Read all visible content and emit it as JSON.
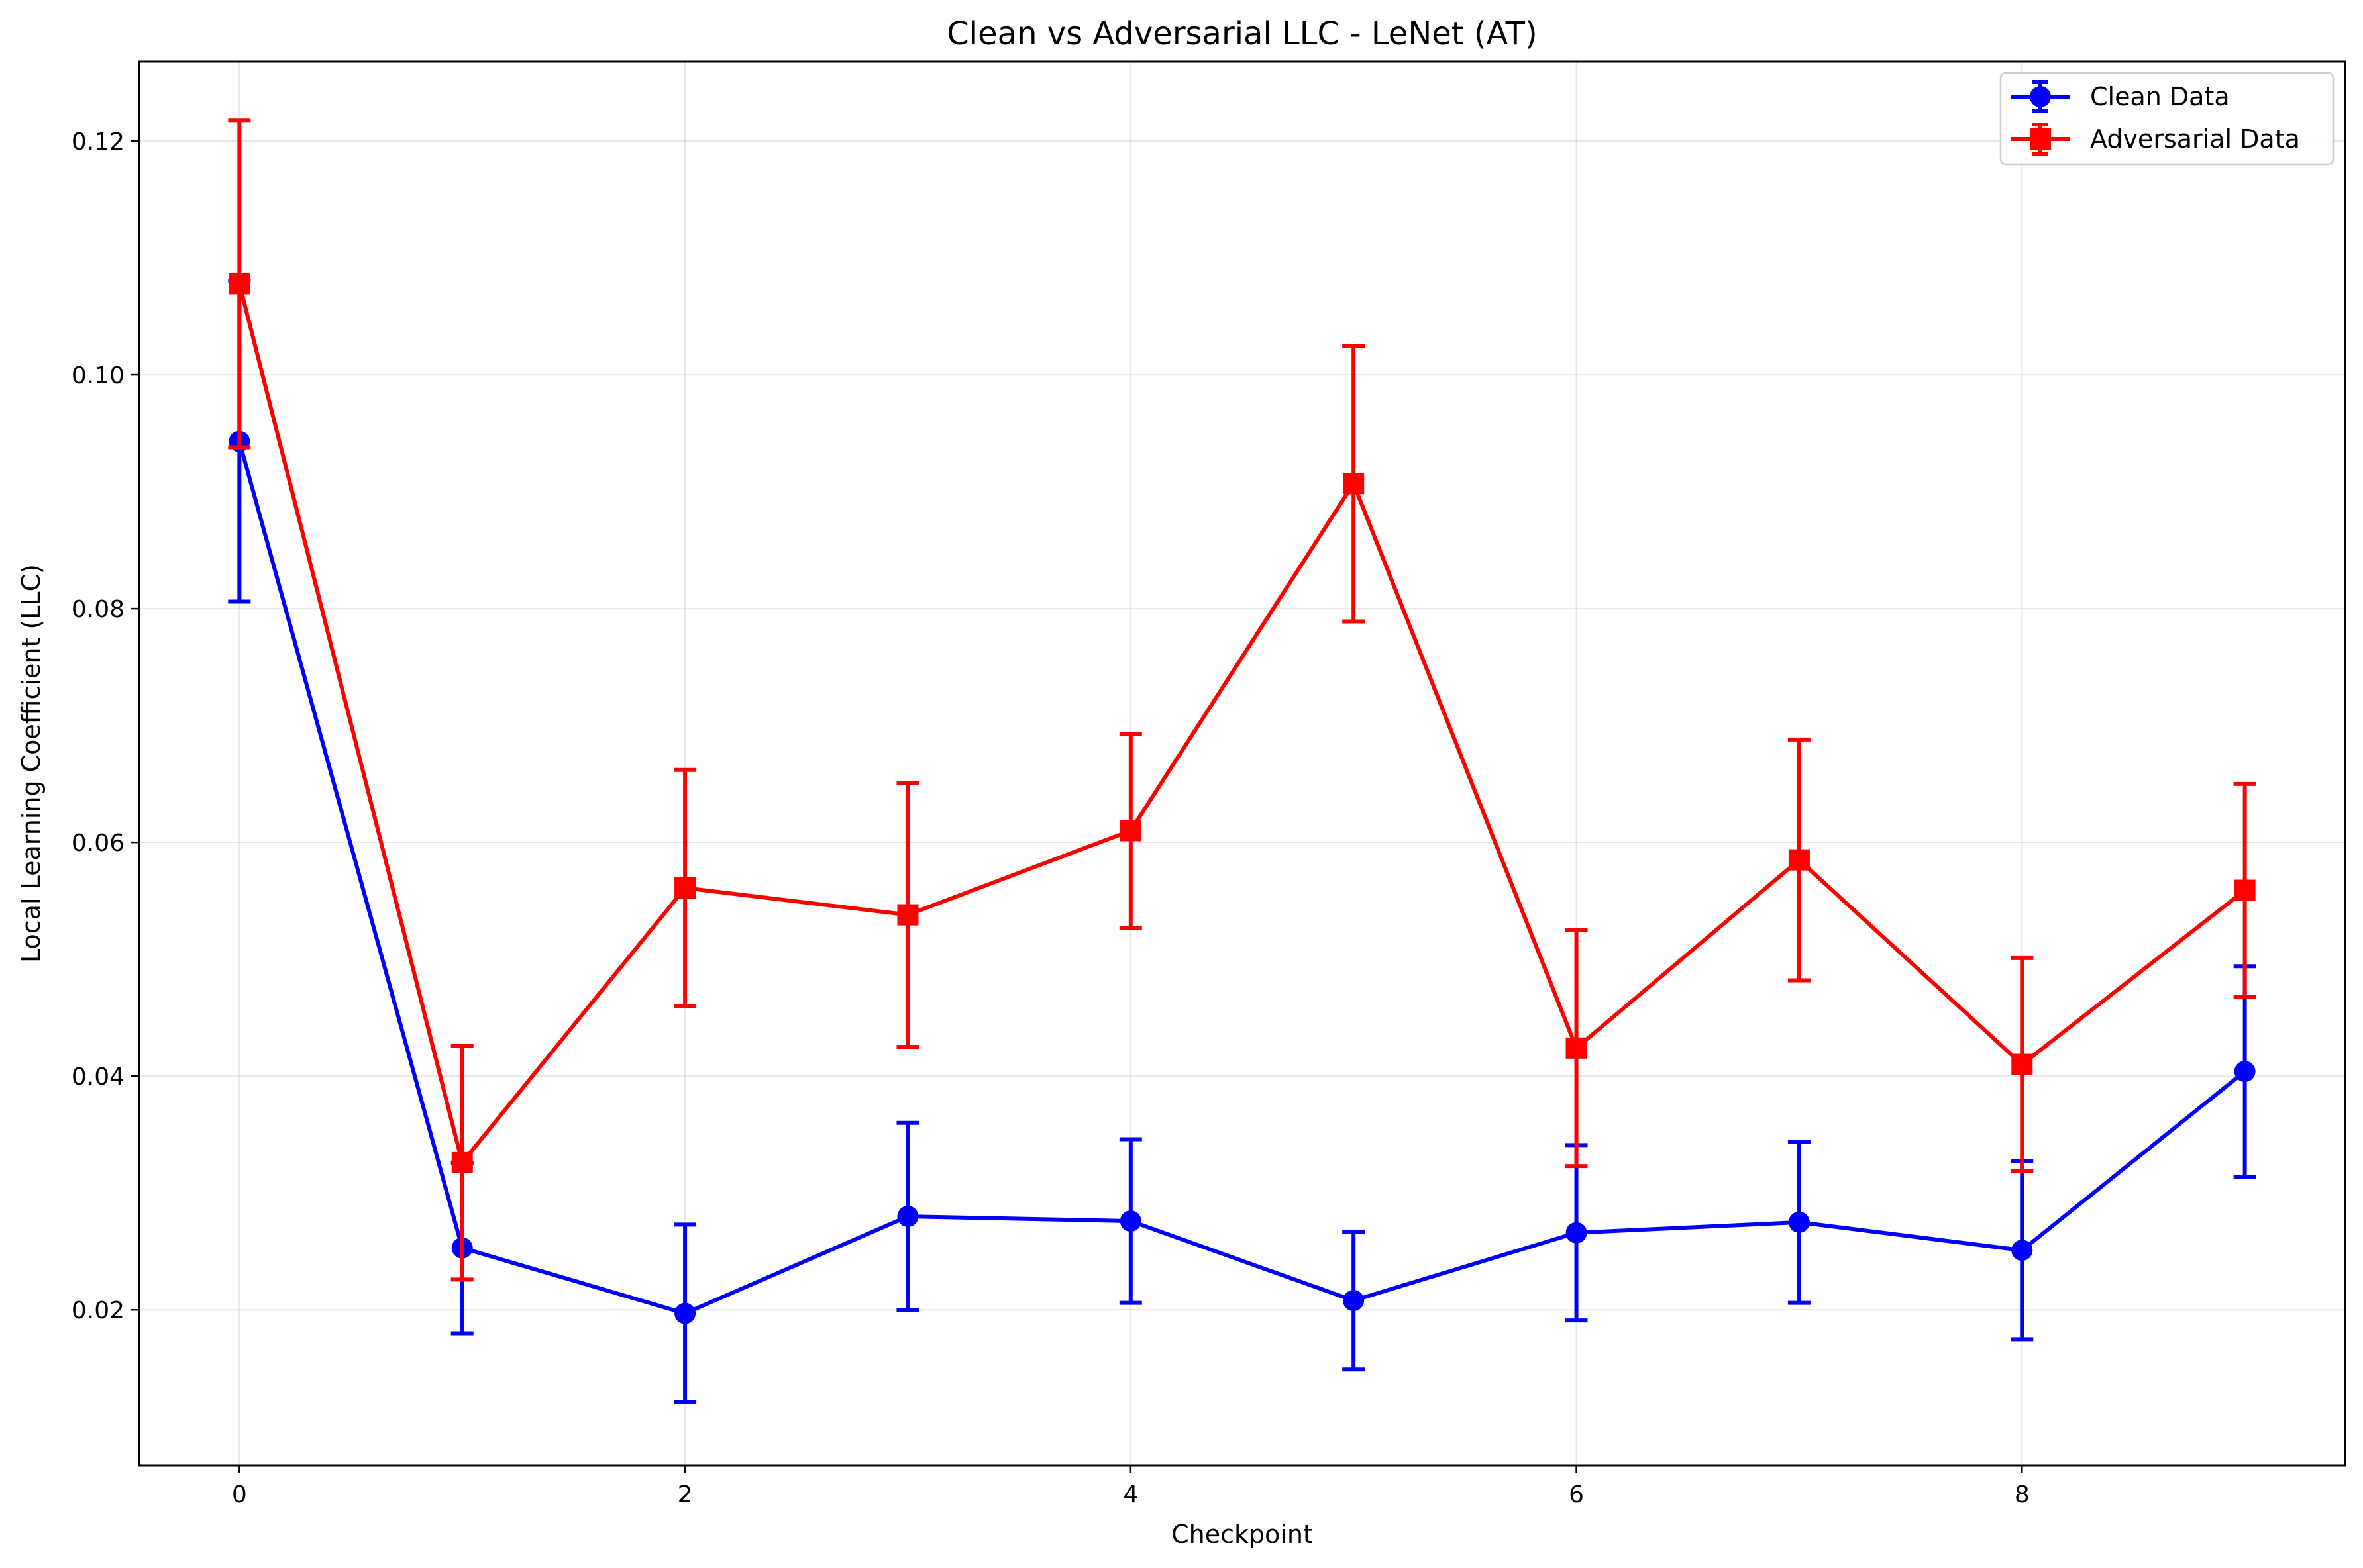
{
  "chart_data": {
    "type": "line",
    "title": "Clean vs Adversarial LLC - LeNet (AT)",
    "xlabel": "Checkpoint",
    "ylabel": "Local Learning Coefficient (LLC)",
    "xlim": [
      -0.45,
      9.45
    ],
    "ylim": [
      0.0067,
      0.1268
    ],
    "xticks": [
      0,
      2,
      4,
      6,
      8
    ],
    "xtick_labels": [
      "0",
      "2",
      "4",
      "6",
      "8"
    ],
    "yticks": [
      0.02,
      0.04,
      0.06,
      0.08,
      0.1,
      0.12
    ],
    "ytick_labels": [
      "0.02",
      "0.04",
      "0.06",
      "0.08",
      "0.10",
      "0.12"
    ],
    "grid": true,
    "legend_position": "top-right",
    "x": [
      0,
      1,
      2,
      3,
      4,
      5,
      6,
      7,
      8,
      9
    ],
    "series": [
      {
        "name": "Clean Data",
        "color": "#0000ff",
        "marker": "circle",
        "values": [
          0.0943,
          0.0253,
          0.0197,
          0.028,
          0.0276,
          0.0208,
          0.0266,
          0.0275,
          0.0251,
          0.0404
        ],
        "errors": [
          0.0137,
          0.0073,
          0.0076,
          0.008,
          0.007,
          0.0059,
          0.0075,
          0.0069,
          0.0076,
          0.009
        ]
      },
      {
        "name": "Adversarial Data",
        "color": "#ff0000",
        "marker": "square",
        "values": [
          0.1078,
          0.0326,
          0.0561,
          0.0538,
          0.061,
          0.0907,
          0.0424,
          0.0585,
          0.041,
          0.0559
        ],
        "errors": [
          0.014,
          0.01,
          0.0101,
          0.0113,
          0.0083,
          0.0118,
          0.0101,
          0.0103,
          0.0091,
          0.0091
        ]
      }
    ]
  }
}
